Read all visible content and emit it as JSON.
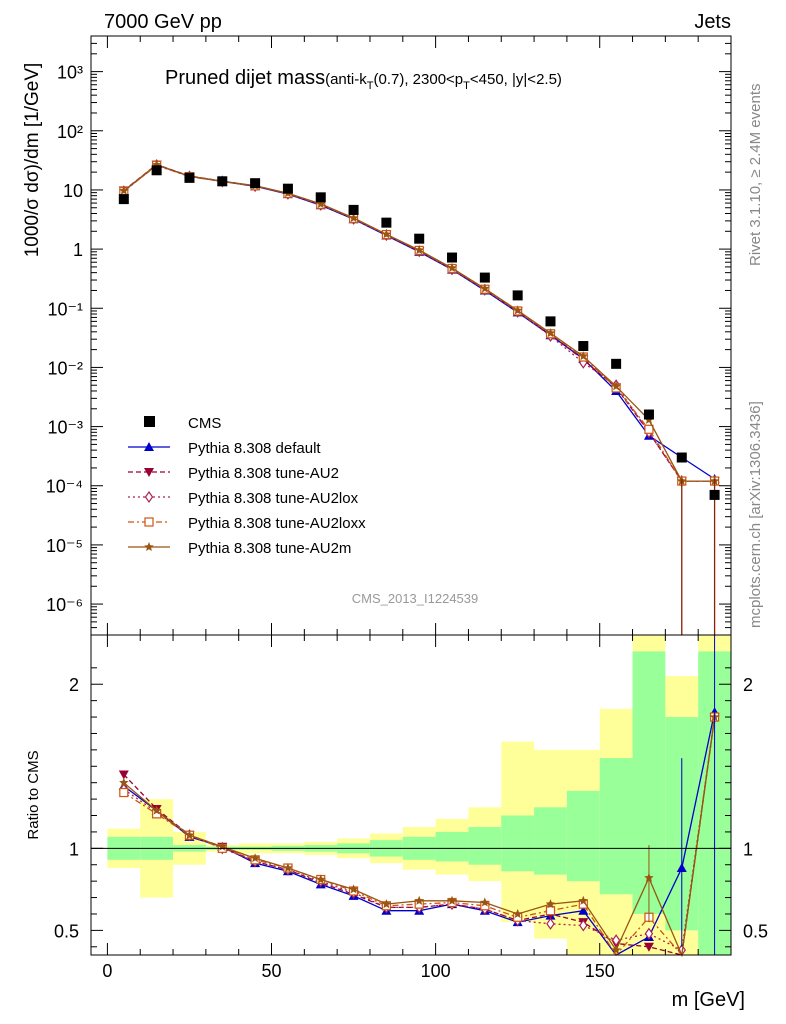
{
  "header": {
    "left": "7000 GeV pp",
    "right": "Jets",
    "side_top": "Rivet 3.1.10, ≥ 2.4M events",
    "side_bottom": "mcplots.cern.ch [arXiv:1306.3436]",
    "watermark": "CMS_2013_I1224539"
  },
  "chart_data": {
    "type": "line",
    "title_main": "Pruned dijet mass",
    "title_sub_1": "(anti-k",
    "title_sub_t": "T",
    "title_sub_2": "(0.7), 2300<p",
    "title_sub_t2": "T",
    "title_sub_3": "<450, |y|<2.5)",
    "ylabel": "1000/σ dσ)/dm [1/GeV]",
    "ylabel_ratio": "Ratio to CMS",
    "xlabel": "m [GeV]",
    "xlim": [
      -5,
      190
    ],
    "ylim": [
      3e-07,
      4000
    ],
    "ratio_ylim": [
      0.35,
      2.3
    ],
    "x_ticks": [
      "0",
      "50",
      "100",
      "150"
    ],
    "y_ticks": [
      "10⁻⁶",
      "10⁻⁵",
      "10⁻⁴",
      "10⁻³",
      "10⁻²",
      "10⁻¹",
      "1",
      "10",
      "10²",
      "10³"
    ],
    "ratio_ticks": [
      "0.5",
      "1",
      "2"
    ],
    "x": [
      5,
      15,
      25,
      35,
      45,
      55,
      65,
      75,
      85,
      95,
      105,
      115,
      125,
      135,
      145,
      155,
      165,
      175,
      185
    ],
    "data": {
      "name": "CMS",
      "values": [
        7.0,
        21.5,
        16.0,
        14.0,
        13.0,
        10.5,
        7.5,
        4.6,
        2.8,
        1.5,
        0.72,
        0.33,
        0.165,
        0.06,
        0.023,
        0.0115,
        0.0016,
        0.0003,
        7e-05
      ]
    },
    "band_inner": [
      0.93,
      0.93,
      0.98,
      0.99,
      0.99,
      0.985,
      0.98,
      0.97,
      0.95,
      0.93,
      0.92,
      0.9,
      0.86,
      0.84,
      0.8,
      0.72,
      0.6,
      0.5,
      0.35
    ],
    "band_inner_hi": [
      1.07,
      1.07,
      1.02,
      1.01,
      1.01,
      1.015,
      1.02,
      1.03,
      1.05,
      1.07,
      1.1,
      1.13,
      1.2,
      1.25,
      1.35,
      1.55,
      2.2,
      1.8,
      2.2
    ],
    "band_outer": [
      0.88,
      0.7,
      0.9,
      0.98,
      0.97,
      0.97,
      0.96,
      0.94,
      0.91,
      0.87,
      0.84,
      0.8,
      0.55,
      0.45,
      0.35,
      0.35,
      0.35,
      0.35,
      0.35
    ],
    "band_outer_hi": [
      1.12,
      1.3,
      1.1,
      1.02,
      1.03,
      1.03,
      1.04,
      1.06,
      1.09,
      1.13,
      1.18,
      1.25,
      1.65,
      1.6,
      1.6,
      1.85,
      2.3,
      2.05,
      2.3
    ],
    "series": [
      {
        "name": "Pythia 8.308 default",
        "color": "#0000cc",
        "marker": "triangle-up",
        "dash": "",
        "values": [
          9.6,
          26.5,
          17.0,
          14.0,
          11.5,
          8.5,
          5.5,
          3.2,
          1.7,
          0.9,
          0.45,
          0.2,
          0.085,
          0.035,
          0.014,
          0.004,
          0.0007,
          0.0003,
          0.00013
        ],
        "ratio": [
          1.38,
          1.23,
          1.07,
          1.01,
          0.91,
          0.86,
          0.78,
          0.71,
          0.62,
          0.62,
          0.66,
          0.62,
          0.55,
          0.59,
          0.62,
          0.3,
          0.46,
          0.88,
          1.83
        ]
      },
      {
        "name": "Pythia 8.308 tune-AU2",
        "color": "#990033",
        "marker": "triangle-down",
        "dash": "5,3",
        "values": [
          9.8,
          26.8,
          17.2,
          14.1,
          11.7,
          8.7,
          5.7,
          3.3,
          1.75,
          0.93,
          0.46,
          0.21,
          0.088,
          0.036,
          0.0135,
          0.0046,
          0.0008,
          0.00012,
          0.00012
        ],
        "ratio": [
          1.45,
          1.24,
          1.08,
          1.01,
          0.92,
          0.87,
          0.79,
          0.72,
          0.64,
          0.64,
          0.66,
          0.63,
          0.56,
          0.6,
          0.55,
          0.42,
          0.4,
          0.33,
          1.8
        ]
      },
      {
        "name": "Pythia 8.308 tune-AU2lox",
        "color": "#aa2255",
        "marker": "diamond-open",
        "dash": "2,3",
        "values": [
          9.5,
          26.3,
          16.9,
          13.9,
          11.6,
          8.6,
          5.6,
          3.25,
          1.73,
          0.92,
          0.455,
          0.205,
          0.087,
          0.034,
          0.012,
          0.005,
          0.0008,
          0.00012,
          0.00012
        ],
        "ratio": [
          1.36,
          1.22,
          1.08,
          1.0,
          0.92,
          0.87,
          0.8,
          0.73,
          0.64,
          0.64,
          0.66,
          0.63,
          0.56,
          0.54,
          0.53,
          0.44,
          0.48,
          0.38,
          1.8
        ]
      },
      {
        "name": "Pythia 8.308 tune-AU2loxx",
        "color": "#cc5511",
        "marker": "square-open",
        "dash": "6,3,2,3",
        "values": [
          9.4,
          26.0,
          16.8,
          13.9,
          11.7,
          8.7,
          5.7,
          3.3,
          1.76,
          0.95,
          0.47,
          0.21,
          0.09,
          0.037,
          0.015,
          0.0045,
          0.0009,
          0.00012,
          0.00012
        ],
        "ratio": [
          1.34,
          1.21,
          1.08,
          1.0,
          0.93,
          0.88,
          0.81,
          0.74,
          0.65,
          0.66,
          0.67,
          0.65,
          0.58,
          0.62,
          0.66,
          0.35,
          0.58,
          0.3,
          1.8
        ]
      },
      {
        "name": "Pythia 8.308 tune-AU2m",
        "color": "#995511",
        "marker": "star",
        "dash": "",
        "values": [
          9.7,
          26.6,
          17.1,
          14.0,
          11.8,
          8.8,
          5.8,
          3.35,
          1.78,
          0.96,
          0.48,
          0.215,
          0.092,
          0.038,
          0.0155,
          0.0048,
          0.0013,
          0.00012,
          0.00012
        ],
        "ratio": [
          1.4,
          1.23,
          1.08,
          1.01,
          0.94,
          0.88,
          0.81,
          0.75,
          0.66,
          0.68,
          0.68,
          0.67,
          0.6,
          0.66,
          0.68,
          0.38,
          0.82,
          0.3,
          1.8
        ]
      }
    ],
    "legend_position": "lower-left"
  }
}
